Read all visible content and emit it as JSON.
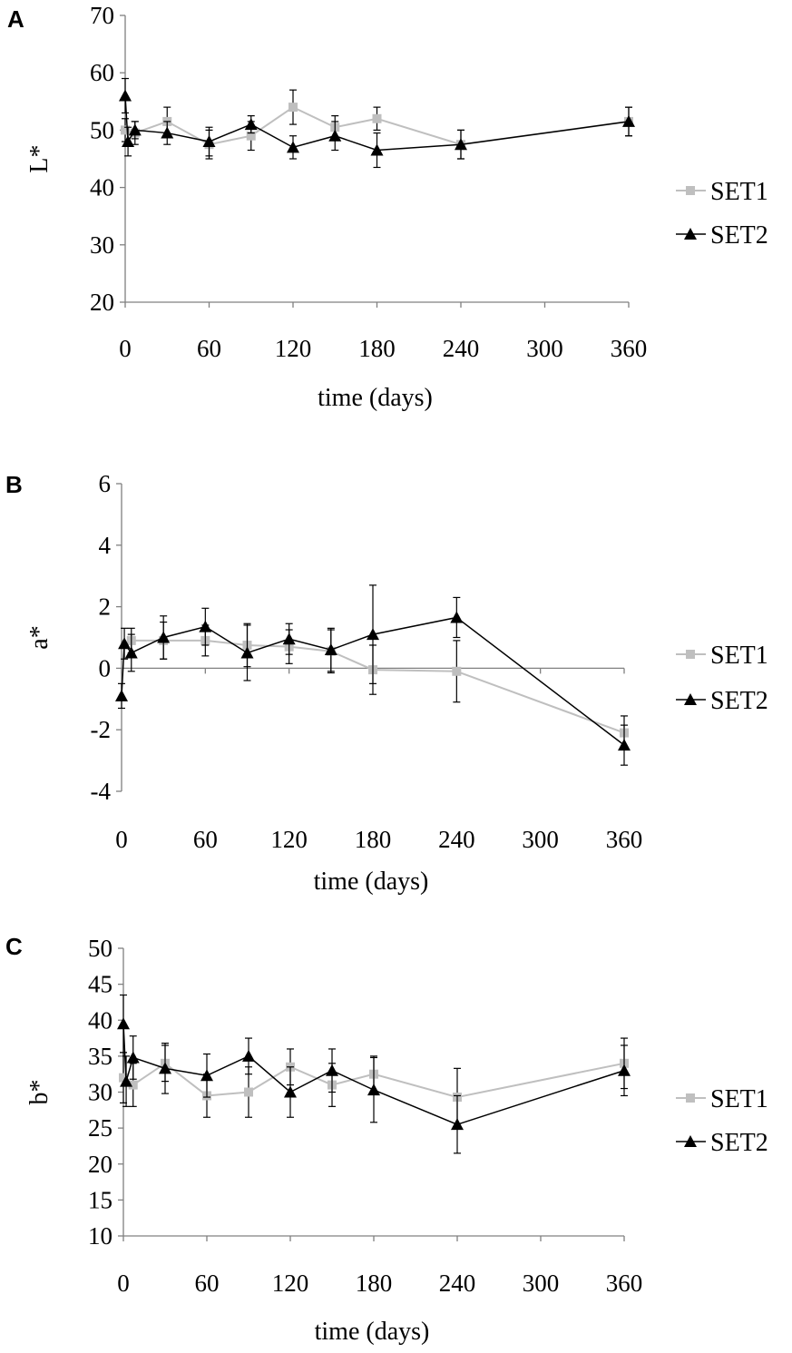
{
  "colors": {
    "set1": "#bfbfbf",
    "set2": "#000000",
    "axis": "#808080",
    "error": "#000000"
  },
  "chart_data": [
    {
      "panel": "A",
      "type": "line",
      "ylabel": "L*",
      "xlabel": "time (days)",
      "xlim": [
        0,
        360
      ],
      "ylim": [
        20,
        70
      ],
      "xticks": [
        0,
        60,
        120,
        180,
        240,
        300,
        360
      ],
      "yticks": [
        20,
        30,
        40,
        50,
        60,
        70
      ],
      "zero_line": false,
      "series": [
        {
          "name": "SET1",
          "marker": "square",
          "x": [
            0,
            7,
            30,
            60,
            90,
            120,
            150,
            180,
            240,
            360
          ],
          "y": [
            50,
            49.5,
            51.5,
            47.5,
            49,
            54,
            50.5,
            52,
            47.5,
            51.5
          ],
          "err": [
            2,
            2,
            2.5,
            2.5,
            2.5,
            3,
            2,
            2,
            2.5,
            2.5
          ]
        },
        {
          "name": "SET2",
          "marker": "triangle",
          "x": [
            0,
            2,
            7,
            30,
            60,
            90,
            120,
            150,
            180,
            240,
            360
          ],
          "y": [
            56,
            48,
            50,
            49.5,
            48,
            51,
            47,
            49,
            46.5,
            47.5,
            51.5
          ],
          "err": [
            3,
            2.5,
            1.5,
            2,
            2.5,
            1.5,
            2,
            2.5,
            3,
            2.5,
            2.5
          ]
        }
      ]
    },
    {
      "panel": "B",
      "type": "line",
      "ylabel": "a*",
      "xlabel": "time (days)",
      "xlim": [
        0,
        360
      ],
      "ylim": [
        -4,
        6
      ],
      "xticks": [
        0,
        60,
        120,
        180,
        240,
        300,
        360
      ],
      "yticks": [
        -4,
        -2,
        0,
        2,
        4,
        6
      ],
      "zero_line": true,
      "series": [
        {
          "name": "SET1",
          "marker": "square",
          "x": [
            7,
            30,
            60,
            90,
            120,
            150,
            180,
            240,
            360
          ],
          "y": [
            0.9,
            0.9,
            0.9,
            0.75,
            0.7,
            0.55,
            -0.05,
            -0.1,
            -2.1
          ],
          "err": [
            0.4,
            0.6,
            0.5,
            0.7,
            0.55,
            0.7,
            0.8,
            1.0,
            0.55
          ]
        },
        {
          "name": "SET2",
          "marker": "triangle",
          "x": [
            0,
            2,
            7,
            30,
            60,
            90,
            120,
            150,
            180,
            240,
            360
          ],
          "y": [
            -0.9,
            0.8,
            0.5,
            1.0,
            1.35,
            0.5,
            0.95,
            0.6,
            1.1,
            1.65,
            -2.5
          ],
          "err": [
            0.4,
            0.5,
            0.6,
            0.7,
            0.6,
            0.9,
            0.5,
            0.7,
            1.6,
            0.65,
            0.65
          ]
        }
      ]
    },
    {
      "panel": "C",
      "type": "line",
      "ylabel": "b*",
      "xlabel": "time (days)",
      "xlim": [
        0,
        360
      ],
      "ylim": [
        10,
        50
      ],
      "xticks": [
        0,
        60,
        120,
        180,
        240,
        300,
        360
      ],
      "yticks": [
        10,
        15,
        20,
        25,
        30,
        35,
        40,
        45,
        50
      ],
      "zero_line": false,
      "series": [
        {
          "name": "SET1",
          "marker": "square",
          "x": [
            0,
            7,
            30,
            60,
            90,
            120,
            150,
            180,
            240,
            360
          ],
          "y": [
            32,
            31,
            34,
            29.5,
            30,
            33.5,
            31,
            32.5,
            29.3,
            34
          ],
          "err": [
            3.5,
            3,
            2.5,
            3,
            3.5,
            2.5,
            3,
            2.5,
            4,
            3.5
          ]
        },
        {
          "name": "SET2",
          "marker": "triangle",
          "x": [
            0,
            2,
            7,
            30,
            60,
            90,
            120,
            150,
            180,
            240,
            360
          ],
          "y": [
            39.5,
            31.5,
            34.8,
            33.3,
            32.3,
            35,
            30,
            33,
            30.3,
            25.5,
            33
          ],
          "err": [
            4,
            3.5,
            3,
            3.5,
            3,
            2.5,
            3.5,
            3,
            4.5,
            4,
            3.5
          ]
        }
      ]
    }
  ]
}
